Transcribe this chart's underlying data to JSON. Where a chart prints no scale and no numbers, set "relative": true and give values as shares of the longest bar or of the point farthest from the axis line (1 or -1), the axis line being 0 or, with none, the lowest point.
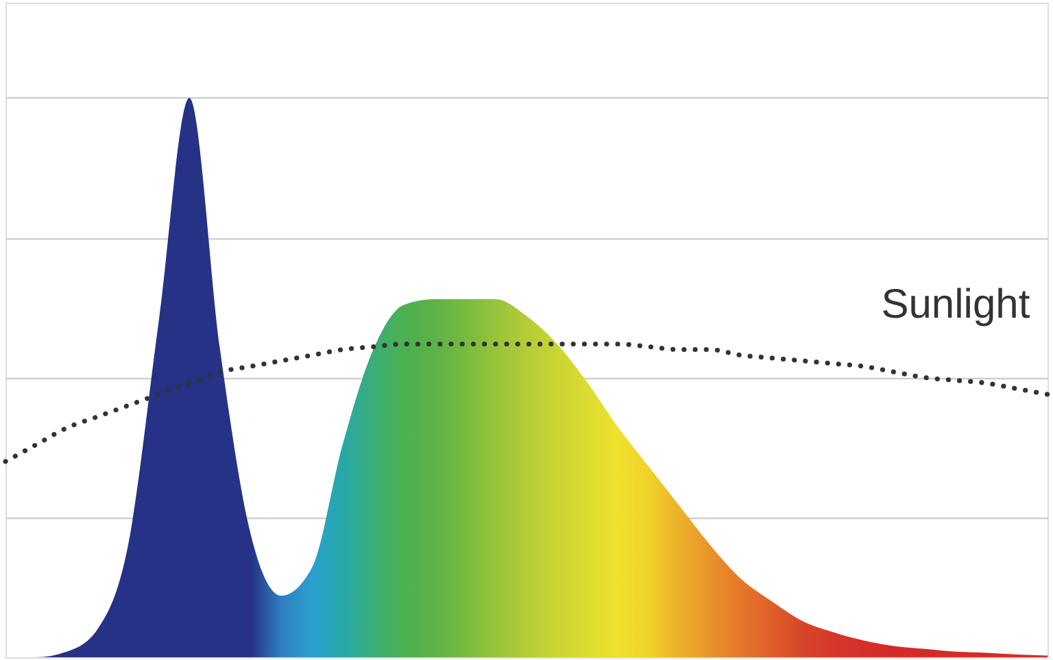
{
  "chart_data": {
    "type": "area",
    "relative": true,
    "grid": "y",
    "tick_labels": false,
    "categories": [
      null,
      null,
      null,
      null,
      null,
      null,
      null,
      null,
      null,
      null,
      null,
      null,
      null,
      null,
      null,
      null,
      null,
      null,
      null,
      null,
      null,
      null,
      null,
      null,
      null,
      null,
      null,
      null,
      null,
      null,
      null,
      null,
      null,
      null,
      null
    ],
    "series": [
      {
        "colors": [
          "#253286",
          "#253286",
          "#253286",
          "#253286",
          "#253286",
          "#253286",
          "#253286",
          "#253286",
          "#253286",
          "#2f7fc0",
          "#2aa0d0",
          "#27a8a8",
          "#3aae78",
          "#4cb050",
          "#5bb247",
          "#78bb3e",
          "#98c43a",
          "#b4cc36",
          "#cad534",
          "#dddb31",
          "#f0e12c",
          "#f0d22a",
          "#ecb02a",
          "#e8932a",
          "#e4772a",
          "#df5f28",
          "#d8452a",
          "#d6382a",
          "#d4302a",
          "#d42a28",
          "#d42a28",
          "#d42a28",
          "#d42a28",
          "#d42a28",
          "#d42a28"
        ],
        "values": [
          0,
          0,
          0.01,
          0.05,
          0.2,
          0.6,
          1.0,
          0.55,
          0.22,
          0.11,
          0.16,
          0.38,
          0.55,
          0.63,
          0.64,
          0.64,
          0.64,
          0.61,
          0.56,
          0.49,
          0.41,
          0.34,
          0.27,
          0.2,
          0.14,
          0.1,
          0.065,
          0.045,
          0.03,
          0.02,
          0.015,
          0.01,
          0.008,
          0.005,
          0.003
        ]
      },
      {
        "type": "line",
        "name": "Sunlight",
        "color": "#333333",
        "line_style": "dotted",
        "values": [
          0.35,
          0.38,
          0.41,
          0.43,
          0.45,
          0.47,
          0.49,
          0.51,
          0.52,
          0.53,
          0.54,
          0.55,
          0.555,
          0.56,
          0.56,
          0.56,
          0.56,
          0.56,
          0.56,
          0.56,
          0.56,
          0.555,
          0.55,
          0.55,
          0.54,
          0.535,
          0.53,
          0.525,
          0.52,
          0.51,
          0.5,
          0.495,
          0.49,
          0.48,
          0.47
        ]
      }
    ]
  }
}
